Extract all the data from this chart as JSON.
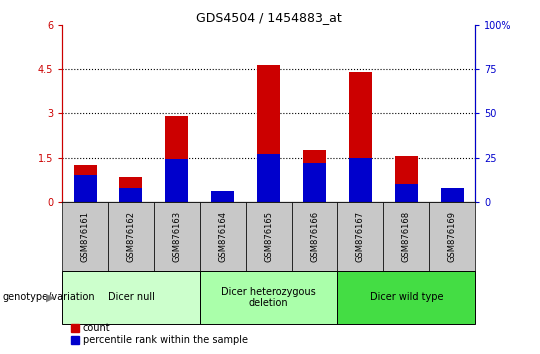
{
  "title": "GDS4504 / 1454883_at",
  "samples": [
    "GSM876161",
    "GSM876162",
    "GSM876163",
    "GSM876164",
    "GSM876165",
    "GSM876166",
    "GSM876167",
    "GSM876168",
    "GSM876169"
  ],
  "count_values": [
    1.25,
    0.85,
    2.9,
    0.1,
    4.65,
    1.75,
    4.4,
    1.55,
    0.2
  ],
  "percentile_values": [
    15,
    8,
    24,
    6,
    27,
    22,
    25,
    10,
    8
  ],
  "count_color": "#cc0000",
  "percentile_color": "#0000cc",
  "ylim_left": [
    0,
    6
  ],
  "ylim_right": [
    0,
    100
  ],
  "yticks_left": [
    0,
    1.5,
    3.0,
    4.5,
    6.0
  ],
  "ytick_labels_left": [
    "0",
    "1.5",
    "3",
    "4.5",
    "6"
  ],
  "yticks_right": [
    0,
    25,
    50,
    75,
    100
  ],
  "ytick_labels_right": [
    "0",
    "25",
    "50",
    "75",
    "100%"
  ],
  "groups": [
    {
      "label": "Dicer null",
      "start": 0,
      "end": 3,
      "color": "#ccffcc"
    },
    {
      "label": "Dicer heterozygous\ndeletion",
      "start": 3,
      "end": 6,
      "color": "#aaffaa"
    },
    {
      "label": "Dicer wild type",
      "start": 6,
      "end": 9,
      "color": "#44dd44"
    }
  ],
  "legend_count": "count",
  "legend_percentile": "percentile rank within the sample",
  "bar_width": 0.5,
  "sample_bg_color": "#c8c8c8",
  "tick_color_left": "#cc0000",
  "tick_color_right": "#0000cc"
}
